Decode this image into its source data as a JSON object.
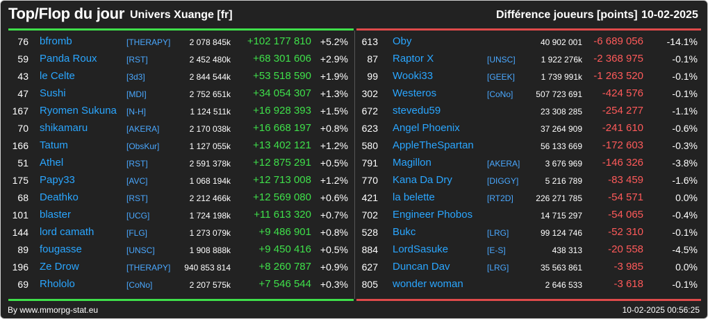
{
  "header": {
    "title": "Top/Flop du jour",
    "universe": "Univers Xuange [fr]",
    "metric": "Différence joueurs [points]",
    "date": "10-02-2025"
  },
  "colors": {
    "top": "#3fe04a",
    "flop": "#ff5a5a",
    "name": "#2aa6ff",
    "background": "#222222"
  },
  "top": [
    {
      "rank": "76",
      "name": "bfromb",
      "guild": "[THERAPY]",
      "score": "2 078 845k",
      "diff": "+102 177 810",
      "pct": "+5.2%"
    },
    {
      "rank": "59",
      "name": "Panda Roux",
      "guild": "[RST]",
      "score": "2 452 480k",
      "diff": "+68 301 606",
      "pct": "+2.9%"
    },
    {
      "rank": "43",
      "name": "le Celte",
      "guild": "[3d3]",
      "score": "2 844 544k",
      "diff": "+53 518 590",
      "pct": "+1.9%"
    },
    {
      "rank": "47",
      "name": "Sushi",
      "guild": "[MDI]",
      "score": "2 752 651k",
      "diff": "+34 054 307",
      "pct": "+1.3%"
    },
    {
      "rank": "167",
      "name": "Ryomen Sukuna",
      "guild": "[N-H]",
      "score": "1 124 511k",
      "diff": "+16 928 393",
      "pct": "+1.5%"
    },
    {
      "rank": "70",
      "name": "shikamaru",
      "guild": "[AKERA]",
      "score": "2 170 038k",
      "diff": "+16 668 197",
      "pct": "+0.8%"
    },
    {
      "rank": "166",
      "name": "Tatum",
      "guild": "[ObsKur]",
      "score": "1 127 055k",
      "diff": "+13 402 121",
      "pct": "+1.2%"
    },
    {
      "rank": "51",
      "name": "Athel",
      "guild": "[RST]",
      "score": "2 591 378k",
      "diff": "+12 875 291",
      "pct": "+0.5%"
    },
    {
      "rank": "175",
      "name": "Papy33",
      "guild": "[AVC]",
      "score": "1 068 194k",
      "diff": "+12 713 008",
      "pct": "+1.2%"
    },
    {
      "rank": "68",
      "name": "Deathko",
      "guild": "[RST]",
      "score": "2 212 466k",
      "diff": "+12 569 080",
      "pct": "+0.6%"
    },
    {
      "rank": "101",
      "name": "blaster",
      "guild": "[UCG]",
      "score": "1 724 198k",
      "diff": "+11 613 320",
      "pct": "+0.7%"
    },
    {
      "rank": "144",
      "name": "lord camath",
      "guild": "[FLG]",
      "score": "1 273 079k",
      "diff": "+9 486 901",
      "pct": "+0.8%"
    },
    {
      "rank": "89",
      "name": "fougasse",
      "guild": "[UNSC]",
      "score": "1 908 888k",
      "diff": "+9 450 416",
      "pct": "+0.5%"
    },
    {
      "rank": "196",
      "name": "Ze Drow",
      "guild": "[THERAPY]",
      "score": "940 853 814",
      "diff": "+8 260 787",
      "pct": "+0.9%"
    },
    {
      "rank": "69",
      "name": "Rhololo",
      "guild": "[CoNo]",
      "score": "2 207 575k",
      "diff": "+7 546 544",
      "pct": "+0.3%"
    }
  ],
  "flop": [
    {
      "rank": "613",
      "name": "Oby",
      "guild": "",
      "score": "40 902 001",
      "diff": "-6 689 056",
      "pct": "-14.1%"
    },
    {
      "rank": "87",
      "name": "Raptor X",
      "guild": "[UNSC]",
      "score": "1 922 276k",
      "diff": "-2 368 975",
      "pct": "-0.1%"
    },
    {
      "rank": "99",
      "name": "Wooki33",
      "guild": "[GEEK]",
      "score": "1 739 991k",
      "diff": "-1 263 520",
      "pct": "-0.1%"
    },
    {
      "rank": "302",
      "name": "Westeros",
      "guild": "[CoNo]",
      "score": "507 723 691",
      "diff": "-424 576",
      "pct": "-0.1%"
    },
    {
      "rank": "672",
      "name": "stevedu59",
      "guild": "",
      "score": "23 308 285",
      "diff": "-254 277",
      "pct": "-1.1%"
    },
    {
      "rank": "623",
      "name": "Angel Phoenix",
      "guild": "",
      "score": "37 264 909",
      "diff": "-241 610",
      "pct": "-0.6%"
    },
    {
      "rank": "580",
      "name": "AppleTheSpartan",
      "guild": "",
      "score": "56 133 669",
      "diff": "-172 603",
      "pct": "-0.3%"
    },
    {
      "rank": "791",
      "name": "Magillon",
      "guild": "[AKERA]",
      "score": "3 676 969",
      "diff": "-146 326",
      "pct": "-3.8%"
    },
    {
      "rank": "770",
      "name": "Kana Da Dry",
      "guild": "[DIGGY]",
      "score": "5 216 789",
      "diff": "-83 459",
      "pct": "-1.6%"
    },
    {
      "rank": "421",
      "name": "la belette",
      "guild": "[RT2D]",
      "score": "226 271 785",
      "diff": "-54 571",
      "pct": "0.0%"
    },
    {
      "rank": "702",
      "name": "Engineer Phobos",
      "guild": "",
      "score": "14 715 297",
      "diff": "-54 065",
      "pct": "-0.4%"
    },
    {
      "rank": "528",
      "name": "Bukc",
      "guild": "[LRG]",
      "score": "99 124 746",
      "diff": "-52 310",
      "pct": "-0.1%"
    },
    {
      "rank": "884",
      "name": "LordSasuke",
      "guild": "[E-S]",
      "score": "438 313",
      "diff": "-20 558",
      "pct": "-4.5%"
    },
    {
      "rank": "627",
      "name": "Duncan Dav",
      "guild": "[LRG]",
      "score": "35 563 861",
      "diff": "-3 985",
      "pct": "0.0%"
    },
    {
      "rank": "805",
      "name": "wonder woman",
      "guild": "",
      "score": "2 646 533",
      "diff": "-3 618",
      "pct": "-0.1%"
    }
  ],
  "footer": {
    "source": "By www.mmorpg-stat.eu",
    "timestamp": "10-02-2025 00:56:25"
  }
}
